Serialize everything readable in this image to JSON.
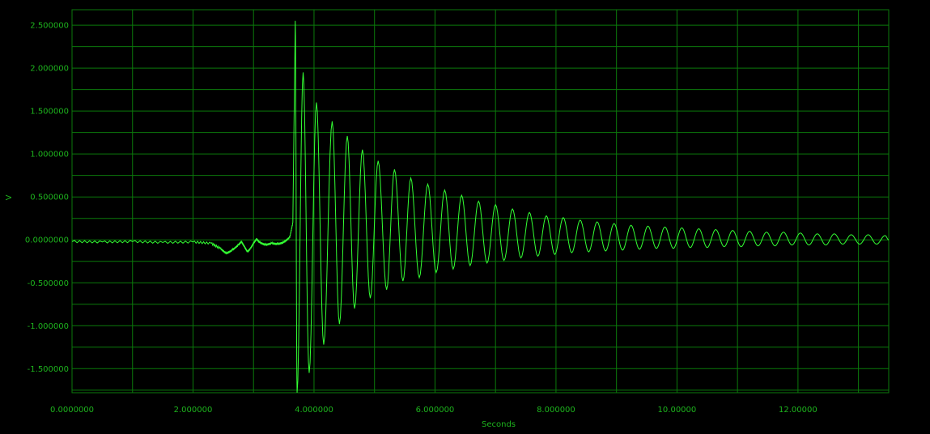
{
  "chart_data": {
    "type": "line",
    "xlabel": "Seconds",
    "ylabel": "V",
    "xlim": [
      0.0,
      13.5
    ],
    "ylim": [
      -1.78,
      2.68
    ],
    "grid": true,
    "x_ticks": [
      {
        "value": 0,
        "label": "0.0000000"
      },
      {
        "value": 2,
        "label": "2.000000"
      },
      {
        "value": 4,
        "label": "4.000000"
      },
      {
        "value": 6,
        "label": "6.000000"
      },
      {
        "value": 8,
        "label": "8.000000"
      },
      {
        "value": 10,
        "label": "10.00000"
      },
      {
        "value": 12,
        "label": "12.00000"
      }
    ],
    "x_minor_step": 1,
    "y_ticks": [
      {
        "value": 2.5,
        "label": "2.500000"
      },
      {
        "value": 2.0,
        "label": "2.000000"
      },
      {
        "value": 1.5,
        "label": "1.500000"
      },
      {
        "value": 1.0,
        "label": "1.000000"
      },
      {
        "value": 0.5,
        "label": "0.500000"
      },
      {
        "value": 0.0,
        "label": "0.0000000"
      },
      {
        "value": -0.5,
        "label": "-0.500000"
      },
      {
        "value": -1.0,
        "label": "-1.000000"
      },
      {
        "value": -1.5,
        "label": "-1.500000"
      }
    ],
    "y_minor_step": 0.25,
    "series": [
      {
        "color": "#33ff33",
        "pre_event": [
          [
            0.0,
            -0.02
          ],
          [
            0.5,
            -0.025
          ],
          [
            1.0,
            -0.02
          ],
          [
            1.5,
            -0.03
          ],
          [
            2.0,
            -0.025
          ],
          [
            2.3,
            -0.04
          ],
          [
            2.45,
            -0.1
          ],
          [
            2.55,
            -0.16
          ],
          [
            2.65,
            -0.12
          ],
          [
            2.75,
            -0.06
          ],
          [
            2.8,
            -0.02
          ],
          [
            2.85,
            -0.08
          ],
          [
            2.9,
            -0.14
          ],
          [
            2.95,
            -0.1
          ],
          [
            3.0,
            -0.04
          ],
          [
            3.05,
            0.01
          ],
          [
            3.1,
            -0.03
          ],
          [
            3.2,
            -0.06
          ],
          [
            3.3,
            -0.04
          ],
          [
            3.4,
            -0.05
          ],
          [
            3.5,
            -0.03
          ],
          [
            3.6,
            0.03
          ],
          [
            3.65,
            0.2
          ]
        ],
        "peaks": [
          [
            3.69,
            2.55
          ],
          [
            3.72,
            -1.78
          ],
          [
            3.82,
            1.95
          ],
          [
            3.92,
            -1.55
          ],
          [
            4.04,
            1.6
          ],
          [
            4.16,
            -1.22
          ],
          [
            4.3,
            1.38
          ],
          [
            4.42,
            -0.98
          ],
          [
            4.55,
            1.21
          ],
          [
            4.67,
            -0.8
          ],
          [
            4.8,
            1.05
          ],
          [
            4.93,
            -0.68
          ],
          [
            5.06,
            0.92
          ],
          [
            5.2,
            -0.58
          ],
          [
            5.33,
            0.82
          ],
          [
            5.47,
            -0.48
          ],
          [
            5.6,
            0.72
          ],
          [
            5.74,
            -0.44
          ],
          [
            5.88,
            0.65
          ],
          [
            6.02,
            -0.38
          ],
          [
            6.16,
            0.58
          ],
          [
            6.3,
            -0.34
          ],
          [
            6.44,
            0.52
          ],
          [
            6.58,
            -0.3
          ],
          [
            6.72,
            0.45
          ],
          [
            6.86,
            -0.27
          ],
          [
            7.0,
            0.41
          ],
          [
            7.14,
            -0.24
          ],
          [
            7.28,
            0.36
          ],
          [
            7.42,
            -0.21
          ],
          [
            7.56,
            0.32
          ],
          [
            7.7,
            -0.19
          ],
          [
            7.84,
            0.28
          ],
          [
            7.98,
            -0.17
          ],
          [
            8.12,
            0.26
          ],
          [
            8.26,
            -0.15
          ],
          [
            8.4,
            0.23
          ],
          [
            8.54,
            -0.14
          ],
          [
            8.68,
            0.21
          ],
          [
            8.82,
            -0.13
          ],
          [
            8.96,
            0.19
          ],
          [
            9.1,
            -0.12
          ],
          [
            9.24,
            0.17
          ],
          [
            9.38,
            -0.11
          ],
          [
            9.52,
            0.16
          ],
          [
            9.66,
            -0.1
          ],
          [
            9.8,
            0.15
          ],
          [
            9.94,
            -0.1
          ],
          [
            10.08,
            0.14
          ],
          [
            10.22,
            -0.09
          ],
          [
            10.36,
            0.13
          ],
          [
            10.5,
            -0.09
          ],
          [
            10.64,
            0.12
          ],
          [
            10.78,
            -0.08
          ],
          [
            10.92,
            0.11
          ],
          [
            11.06,
            -0.08
          ],
          [
            11.2,
            0.1
          ],
          [
            11.34,
            -0.07
          ],
          [
            11.48,
            0.09
          ],
          [
            11.62,
            -0.07
          ],
          [
            11.76,
            0.09
          ],
          [
            11.9,
            -0.06
          ],
          [
            12.04,
            0.08
          ],
          [
            12.18,
            -0.06
          ],
          [
            12.32,
            0.07
          ],
          [
            12.46,
            -0.06
          ],
          [
            12.6,
            0.07
          ],
          [
            12.74,
            -0.05
          ],
          [
            12.88,
            0.06
          ],
          [
            13.02,
            -0.05
          ],
          [
            13.16,
            0.06
          ],
          [
            13.3,
            -0.05
          ],
          [
            13.44,
            0.05
          ],
          [
            13.5,
            0.0
          ]
        ]
      }
    ]
  },
  "colors": {
    "background": "#000000",
    "grid": "#0b7a0b",
    "tick_label": "#1db41d",
    "trace": "#33ff33"
  }
}
